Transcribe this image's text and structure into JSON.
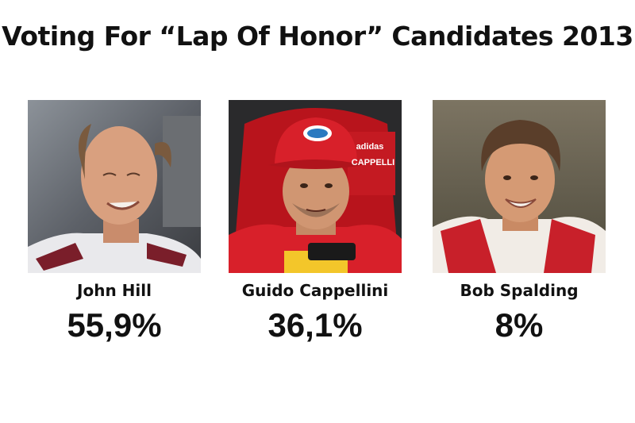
{
  "title": "Voting For “Lap Of Honor” Candidates 2013",
  "candidates": [
    {
      "name": "John Hill",
      "percent": "55,9%",
      "photo_icon": "portrait-photo"
    },
    {
      "name": "Guido Cappellini",
      "percent": "36,1%",
      "photo_icon": "portrait-photo",
      "cap_logo_text": "adidas",
      "suit_text": "CAPPELLI"
    },
    {
      "name": "Bob Spalding",
      "percent": "8%",
      "photo_icon": "portrait-photo"
    }
  ],
  "colors": {
    "background": "#ffffff",
    "text": "#111111",
    "cap_red": "#d8202a"
  }
}
